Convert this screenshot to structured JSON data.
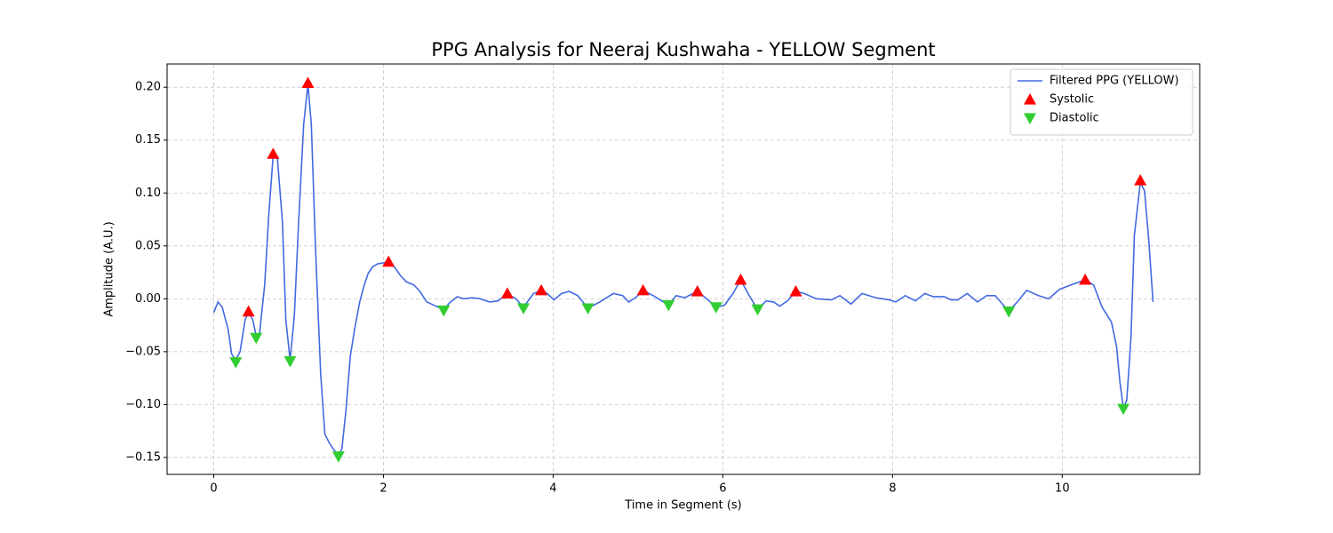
{
  "chart_data": {
    "type": "line",
    "title": "PPG Analysis for Neeraj Kushwaha - YELLOW Segment",
    "x_label": "Time in Segment (s)",
    "y_label": "Amplitude (A.U.)",
    "xlim": [
      -0.55,
      11.62
    ],
    "ylim": [
      -0.166,
      0.222
    ],
    "xticks": [
      0,
      2,
      4,
      6,
      8,
      10
    ],
    "yticks": [
      {
        "value": -0.15,
        "label": "−0.15"
      },
      {
        "value": -0.1,
        "label": "−0.10"
      },
      {
        "value": -0.05,
        "label": "−0.05"
      },
      {
        "value": 0,
        "label": "0.00"
      },
      {
        "value": 0.05,
        "label": "0.05"
      },
      {
        "value": 0.1,
        "label": "0.10"
      },
      {
        "value": 0.15,
        "label": "0.15"
      },
      {
        "value": 0.2,
        "label": "0.20"
      }
    ],
    "grid": true,
    "legend": "upper right",
    "series": [
      {
        "name": "Filtered PPG (YELLOW)",
        "color": "#4169e1",
        "marker": "line",
        "x": [
          0,
          0.05,
          0.1,
          0.17,
          0.21,
          0.26,
          0.31,
          0.37,
          0.41,
          0.46,
          0.5,
          0.54,
          0.6,
          0.65,
          0.7,
          0.75,
          0.81,
          0.85,
          0.9,
          0.95,
          1.0,
          1.06,
          1.11,
          1.15,
          1.2,
          1.26,
          1.31,
          1.36,
          1.41,
          1.47,
          1.51,
          1.56,
          1.61,
          1.66,
          1.72,
          1.77,
          1.82,
          1.87,
          1.93,
          2.0,
          2.06,
          2.13,
          2.2,
          2.27,
          2.36,
          2.43,
          2.51,
          2.62,
          2.71,
          2.79,
          2.87,
          2.95,
          3.05,
          3.14,
          3.25,
          3.35,
          3.46,
          3.56,
          3.65,
          3.77,
          3.86,
          3.93,
          4.01,
          4.1,
          4.19,
          4.29,
          4.41,
          4.55,
          4.71,
          4.82,
          4.89,
          4.97,
          5.06,
          5.18,
          5.36,
          5.45,
          5.55,
          5.7,
          5.81,
          5.92,
          6.02,
          6.12,
          6.21,
          6.31,
          6.41,
          6.51,
          6.6,
          6.67,
          6.76,
          6.86,
          6.96,
          7.1,
          7.28,
          7.38,
          7.51,
          7.64,
          7.8,
          7.96,
          8.04,
          8.15,
          8.27,
          8.38,
          8.48,
          8.61,
          8.69,
          8.77,
          8.88,
          9.0,
          9.11,
          9.21,
          9.37,
          9.48,
          9.58,
          9.72,
          9.84,
          9.97,
          10.1,
          10.27,
          10.37,
          10.47,
          10.58,
          10.64,
          10.68,
          10.72,
          10.76,
          10.81,
          10.85,
          10.92,
          10.97,
          11.02,
          11.07
        ],
        "values": [
          -0.013,
          -0.003,
          -0.008,
          -0.029,
          -0.052,
          -0.058,
          -0.05,
          -0.02,
          -0.012,
          -0.02,
          -0.035,
          -0.033,
          0.013,
          0.081,
          0.135,
          0.133,
          0.072,
          -0.02,
          -0.058,
          -0.016,
          0.072,
          0.165,
          0.203,
          0.165,
          0.047,
          -0.071,
          -0.128,
          -0.136,
          -0.142,
          -0.148,
          -0.142,
          -0.104,
          -0.054,
          -0.029,
          -0.003,
          0.012,
          0.024,
          0.03,
          0.033,
          0.034,
          0.035,
          0.03,
          0.022,
          0.016,
          0.013,
          0.007,
          -0.003,
          -0.007,
          -0.01,
          -0.003,
          0.002,
          0,
          0.001,
          0,
          -0.003,
          -0.002,
          0.005,
          0,
          -0.008,
          0.005,
          0.008,
          0.005,
          -0.001,
          0.005,
          0.007,
          0.003,
          -0.009,
          -0.003,
          0.005,
          0.003,
          -0.003,
          0.001,
          0.008,
          0.003,
          -0.006,
          0.003,
          0.001,
          0.007,
          0,
          -0.008,
          -0.006,
          0.005,
          0.018,
          0.003,
          -0.01,
          -0.002,
          -0.003,
          -0.007,
          -0.002,
          0.007,
          0.005,
          0,
          -0.001,
          0.003,
          -0.005,
          0.005,
          0.001,
          -0.001,
          -0.003,
          0.003,
          -0.002,
          0.005,
          0.002,
          0.002,
          -0.001,
          -0.001,
          0.005,
          -0.003,
          0.003,
          0.003,
          -0.012,
          -0.002,
          0.008,
          0.003,
          0,
          0.009,
          0.013,
          0.018,
          0.013,
          -0.008,
          -0.022,
          -0.045,
          -0.079,
          -0.103,
          -0.096,
          -0.037,
          0.06,
          0.11,
          0.102,
          0.055,
          -0.003
        ]
      },
      {
        "name": "Systolic",
        "color": "#ff0000",
        "marker": "triangle-up",
        "x": [
          0.41,
          0.7,
          1.11,
          2.06,
          3.46,
          3.86,
          5.06,
          5.7,
          6.21,
          6.86,
          10.27,
          10.92
        ],
        "values": [
          -0.012,
          0.137,
          0.204,
          0.035,
          0.005,
          0.008,
          0.008,
          0.007,
          0.018,
          0.007,
          0.018,
          0.112
        ]
      },
      {
        "name": "Diastolic",
        "color": "#32cd32",
        "marker": "triangle-down",
        "x": [
          0.26,
          0.5,
          0.9,
          1.47,
          2.71,
          3.65,
          4.41,
          5.36,
          5.92,
          6.41,
          9.37,
          10.72
        ],
        "values": [
          -0.06,
          -0.037,
          -0.059,
          -0.149,
          -0.011,
          -0.009,
          -0.009,
          -0.006,
          -0.008,
          -0.01,
          -0.012,
          -0.104
        ]
      }
    ]
  }
}
